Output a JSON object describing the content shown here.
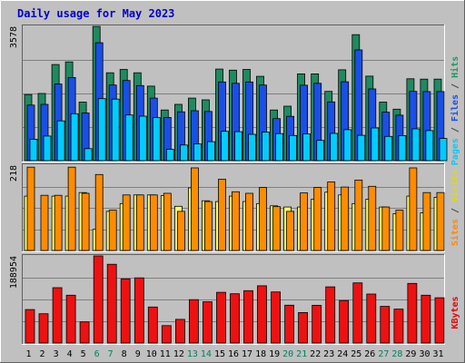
{
  "chart_data": {
    "type": "bar",
    "title": "Daily usage for May 2023",
    "categories": [
      "1",
      "2",
      "3",
      "4",
      "5",
      "6",
      "7",
      "8",
      "9",
      "10",
      "11",
      "12",
      "13",
      "14",
      "15",
      "16",
      "17",
      "18",
      "19",
      "20",
      "21",
      "22",
      "23",
      "24",
      "25",
      "26",
      "27",
      "28",
      "29",
      "30",
      "31"
    ],
    "weekend_days": [
      "6",
      "7",
      "13",
      "14",
      "20",
      "21",
      "27",
      "28"
    ],
    "panels": [
      {
        "name": "hits-files-pages",
        "max_label": "3578",
        "ymax": 3578,
        "right_label_parts": [
          {
            "text": "Pages",
            "color": "#00ccff"
          },
          {
            "text": " / ",
            "color": "#444444"
          },
          {
            "text": "Files",
            "color": "#1a4fe6"
          },
          {
            "text": " / ",
            "color": "#444444"
          },
          {
            "text": "Hits",
            "color": "#1f9960"
          }
        ],
        "series": [
          {
            "name": "Hits",
            "color": "#1f8a60",
            "values": [
              1760,
              1790,
              2560,
              2630,
              1560,
              3575,
              2340,
              2430,
              2340,
              1985,
              1350,
              1500,
              1665,
              1620,
              2440,
              2410,
              2430,
              2245,
              1350,
              1450,
              2310,
              2310,
              1845,
              2420,
              3355,
              2250,
              1560,
              1370,
              2180,
              2170,
              2170
            ]
          },
          {
            "name": "Files",
            "color": "#1a4fe6",
            "values": [
              1480,
              1500,
              2040,
              2215,
              1270,
              3140,
              2015,
              2135,
              2000,
              1665,
              1150,
              1300,
              1330,
              1310,
              2095,
              2060,
              2095,
              2015,
              1120,
              1180,
              2010,
              2060,
              1565,
              2100,
              2950,
              1910,
              1290,
              1210,
              1845,
              1840,
              1840
            ]
          },
          {
            "name": "Pages",
            "color": "#00ccff",
            "values": [
              570,
              655,
              1060,
              1250,
              320,
              1650,
              1640,
              1215,
              1185,
              1145,
              300,
              415,
              445,
              505,
              780,
              770,
              700,
              760,
              720,
              670,
              710,
              540,
              725,
              825,
              675,
              870,
              645,
              665,
              845,
              800,
              590
            ]
          }
        ]
      },
      {
        "name": "visits-sites",
        "max_label": "218",
        "ymax": 218,
        "right_label_parts": [
          {
            "text": "Sites",
            "color": "#ff8800"
          },
          {
            "text": " / ",
            "color": "#444444"
          },
          {
            "text": "Visits",
            "color": "#dddd00"
          }
        ],
        "series": [
          {
            "name": "Visits",
            "color": "#ffff66",
            "values": [
              139,
              0,
              139,
              139,
              148,
              54,
              100,
              120,
              142,
              142,
              140,
              113,
              160,
              127,
              125,
              139,
              125,
              120,
              114,
              111,
              111,
              131,
              149,
              142,
              120,
              131,
              111,
              94,
              139,
              96,
              136
            ]
          },
          {
            "name": "Sites",
            "color": "#ff8c00",
            "values": [
              213,
              141,
              141,
              213,
              146,
              194,
              103,
              142,
              142,
              142,
              146,
              100,
              211,
              125,
              182,
              150,
              146,
              161,
              112,
              100,
              147,
              161,
              175,
              162,
              180,
              164,
              111,
              103,
              211,
              148,
              148
            ]
          }
        ]
      },
      {
        "name": "kbytes",
        "max_label": "188954",
        "ymax": 188954,
        "right_label_parts": [
          {
            "text": "KBytes",
            "color": "#ee0000"
          }
        ],
        "series": [
          {
            "name": "KBytes",
            "color": "#ee1111",
            "values": [
              72700,
              63650,
              120000,
              103650,
              45800,
              188954,
              170900,
              139100,
              141400,
              78200,
              37750,
              51350,
              94100,
              89550,
              110000,
              106800,
              113650,
              124100,
              110900,
              82000,
              66100,
              81800,
              121750,
              92050,
              130450,
              106300,
              79550,
              73650,
              129300,
              103650,
              98200
            ]
          }
        ]
      }
    ],
    "colors": {
      "background": "#c0c0c0",
      "title": "#0000cc",
      "grid": "#808080",
      "weekday_label": "#000000",
      "weekend_label": "#00805f"
    }
  }
}
